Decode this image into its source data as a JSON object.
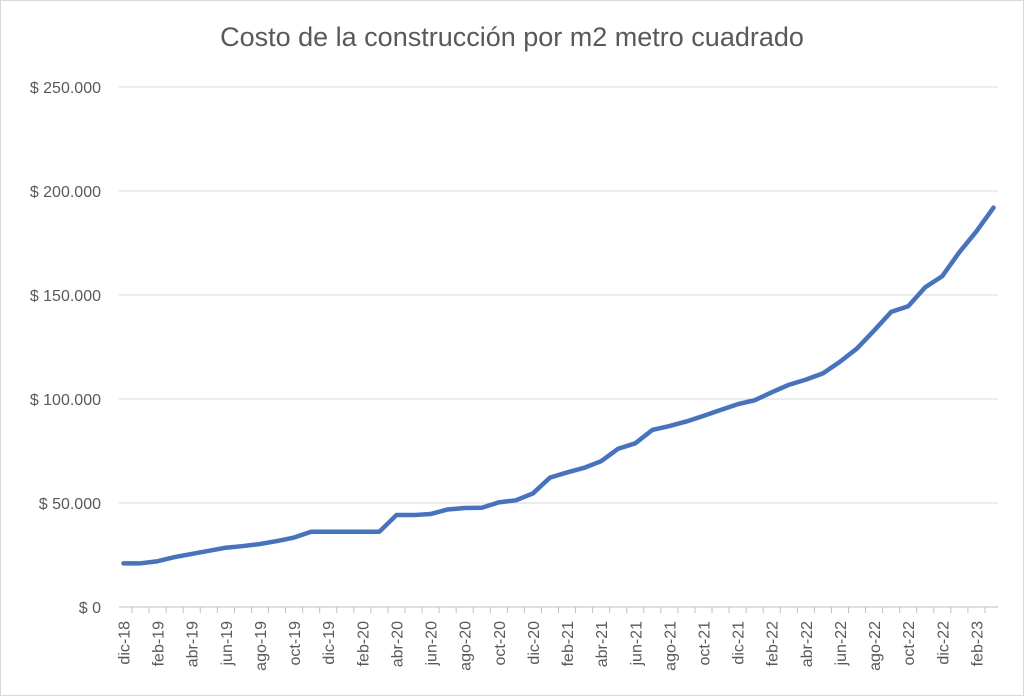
{
  "chart_data": {
    "type": "line",
    "title": "Costo de la construcción por m2 metro cuadrado",
    "xlabel": "",
    "ylabel": "",
    "ylim": [
      0,
      250000
    ],
    "yticks": [
      "$ 0",
      "$ 50.000",
      "$ 100.000",
      "$ 150.000",
      "$ 200.000",
      "$ 250.000"
    ],
    "xticks": [
      "dic-18",
      "feb-19",
      "abr-19",
      "jun-19",
      "ago-19",
      "oct-19",
      "dic-19",
      "feb-20",
      "abr-20",
      "jun-20",
      "ago-20",
      "oct-20",
      "dic-20",
      "feb-21",
      "abr-21",
      "jun-21",
      "ago-21",
      "oct-21",
      "dic-21",
      "feb-22",
      "abr-22",
      "jun-22",
      "ago-22",
      "oct-22",
      "dic-22",
      "feb-23"
    ],
    "grid": true,
    "legend": "none",
    "series": [
      {
        "color": "#4472c4",
        "x": [
          "dic-18",
          "ene-19",
          "feb-19",
          "mar-19",
          "abr-19",
          "may-19",
          "jun-19",
          "jul-19",
          "ago-19",
          "sep-19",
          "oct-19",
          "nov-19",
          "dic-19",
          "ene-20",
          "feb-20",
          "mar-20",
          "abr-20",
          "may-20",
          "jun-20",
          "jul-20",
          "ago-20",
          "sep-20",
          "oct-20",
          "nov-20",
          "dic-20",
          "ene-21",
          "feb-21",
          "mar-21",
          "abr-21",
          "may-21",
          "jun-21",
          "jul-21",
          "ago-21",
          "sep-21",
          "oct-21",
          "nov-21",
          "dic-21",
          "ene-22",
          "feb-22",
          "mar-22",
          "abr-22",
          "may-22",
          "jun-22",
          "jul-22",
          "ago-22",
          "sep-22",
          "oct-22",
          "nov-22",
          "dic-22",
          "ene-23",
          "feb-23",
          "mar-23"
        ],
        "values": [
          21000,
          21000,
          22000,
          24000,
          25500,
          27000,
          28500,
          29300,
          30300,
          31700,
          33400,
          36200,
          36200,
          36200,
          36200,
          36200,
          44200,
          44200,
          44700,
          46900,
          47600,
          47700,
          50300,
          51300,
          54600,
          62200,
          64700,
          66900,
          70100,
          76100,
          78700,
          85100,
          87000,
          89200,
          91900,
          94700,
          97500,
          99400,
          103200,
          106800,
          109300,
          112300,
          117900,
          124300,
          132900,
          141900,
          144600,
          153700,
          159100,
          170600,
          180600,
          192000
        ]
      }
    ]
  }
}
